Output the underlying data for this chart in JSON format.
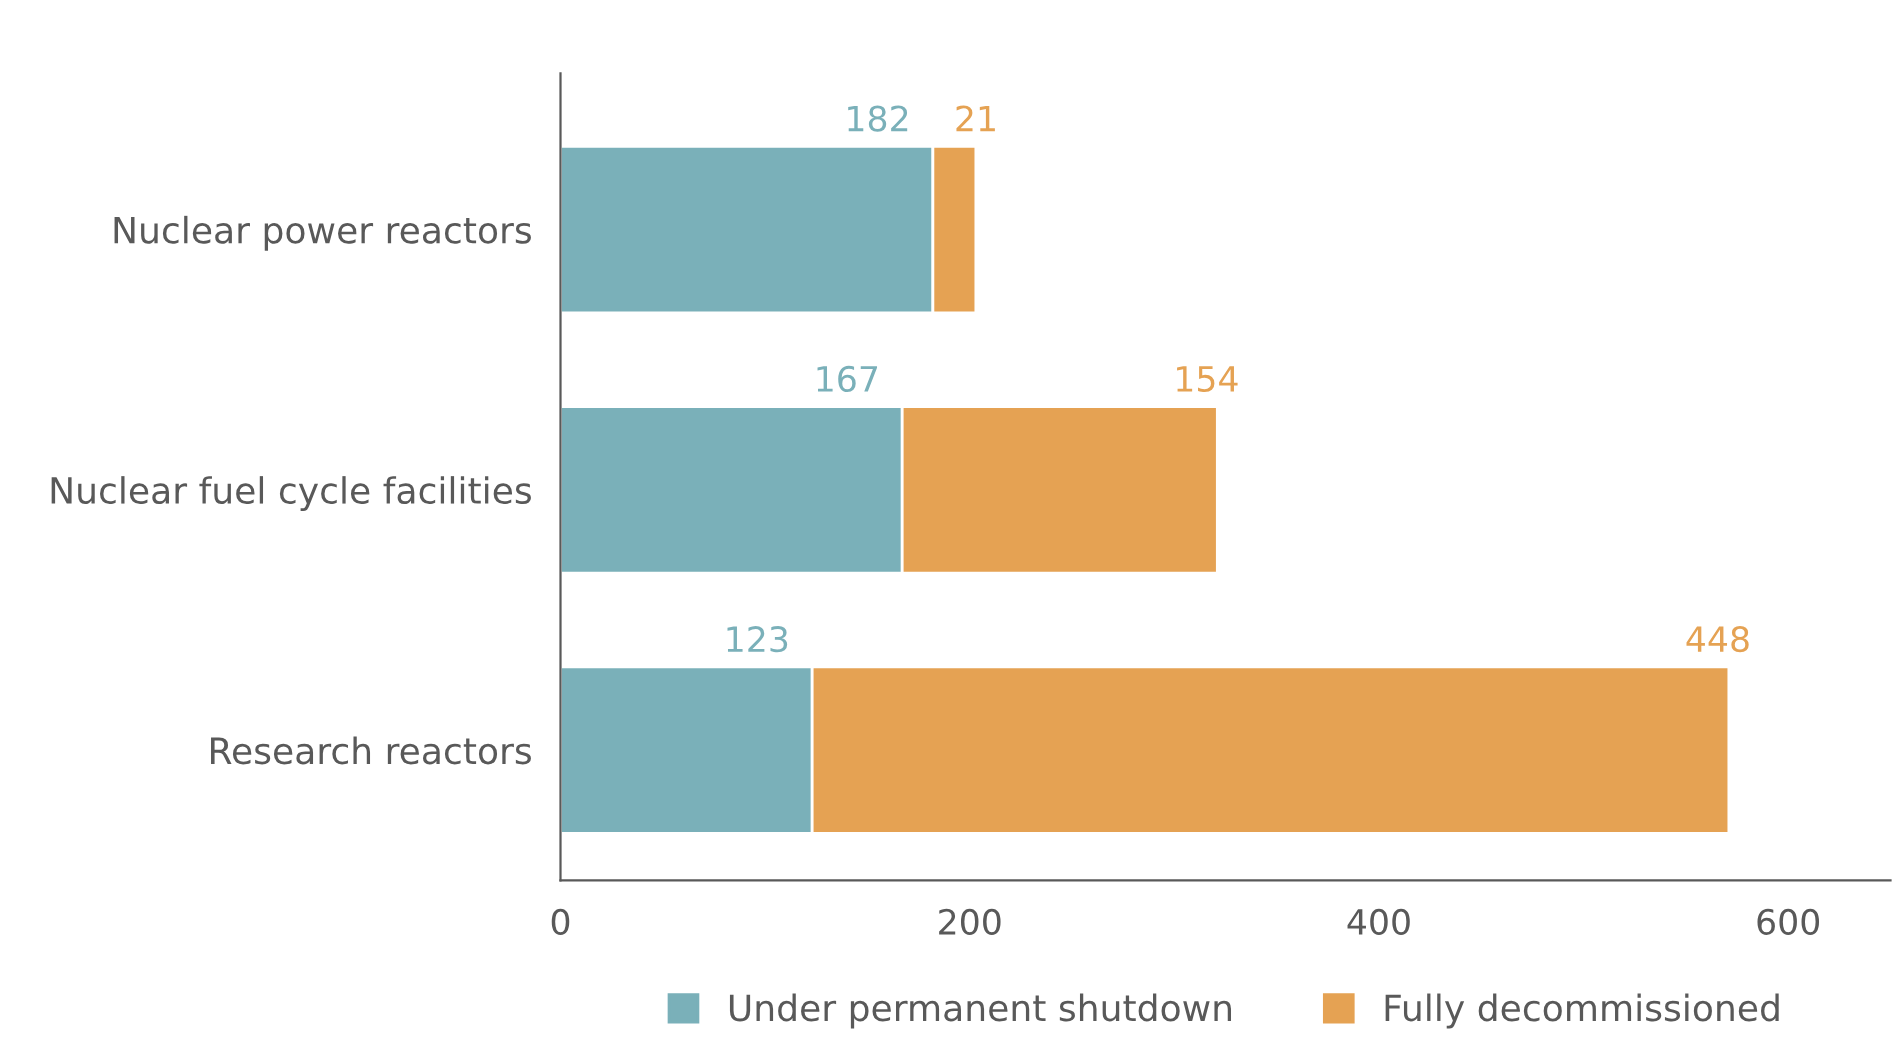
{
  "chart_data": {
    "type": "bar",
    "orientation": "horizontal",
    "stacked": true,
    "categories": [
      "Nuclear power reactors",
      "Nuclear fuel cycle facilities",
      "Research reactors"
    ],
    "series": [
      {
        "name": "Under permanent shutdown",
        "color": "#7ab0b9",
        "values": [
          182,
          167,
          123
        ]
      },
      {
        "name": "Fully decommissioned",
        "color": "#e5a253",
        "values": [
          21,
          154,
          448
        ]
      }
    ],
    "xlim": [
      0,
      650
    ],
    "xticks": [
      0,
      200,
      400,
      600
    ],
    "data_labels": true,
    "legend": "bottom",
    "grid": false
  }
}
